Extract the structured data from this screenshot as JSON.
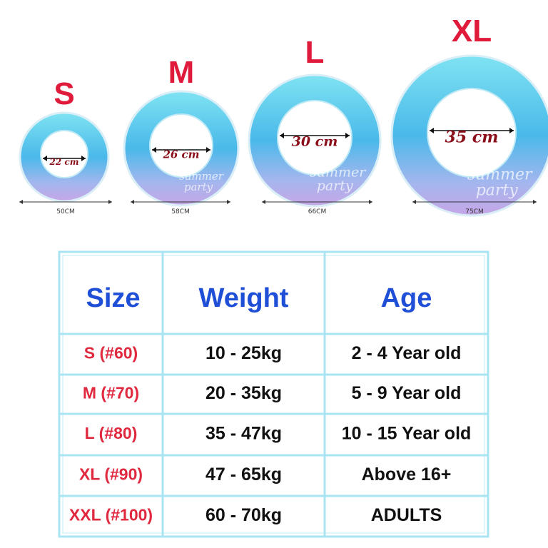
{
  "rings": [
    {
      "size": "S",
      "inner": "22 cm",
      "outer": "50CM"
    },
    {
      "size": "M",
      "inner": "26 cm",
      "outer": "58CM",
      "print": [
        "summer",
        "party"
      ]
    },
    {
      "size": "L",
      "inner": "30 cm",
      "outer": "66CM",
      "print": [
        "summer",
        "party"
      ]
    },
    {
      "size": "XL",
      "inner": "35 cm",
      "outer": "75CM",
      "print": [
        "summer",
        "party"
      ]
    }
  ],
  "table": {
    "header": [
      "Size",
      "Weight",
      "Age"
    ],
    "rows": [
      [
        "S (#60)",
        "10 - 25kg",
        "2 - 4 Year old"
      ],
      [
        "M (#70)",
        "20 - 35kg",
        "5 - 9 Year old"
      ],
      [
        "L (#80)",
        "35 - 47kg",
        "10 - 15 Year old"
      ],
      [
        "XL (#90)",
        "47 - 65kg",
        "Above 16+"
      ],
      [
        "XXL (#100)",
        "60 - 70kg",
        "ADULTS"
      ]
    ]
  }
}
